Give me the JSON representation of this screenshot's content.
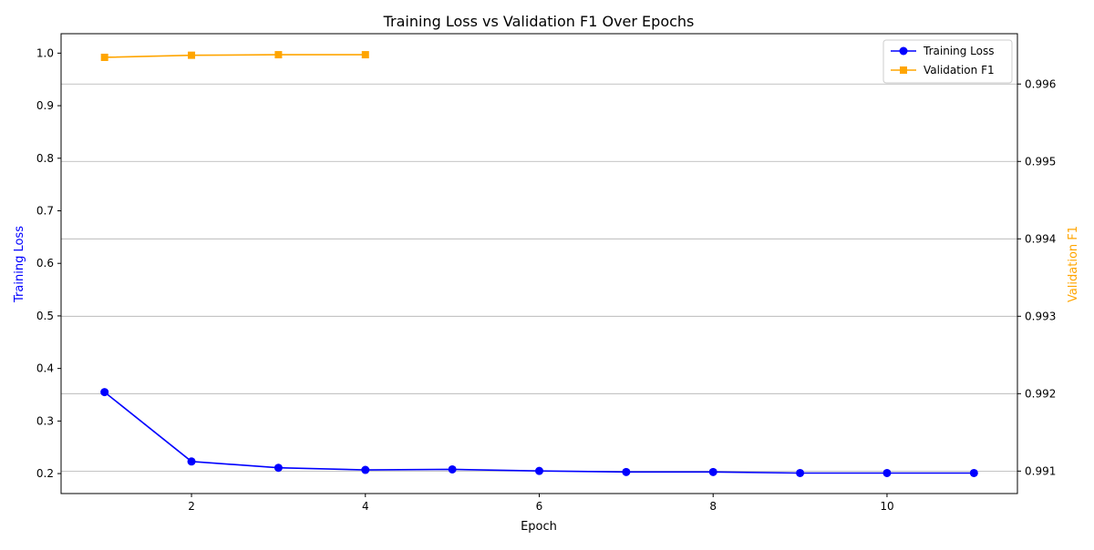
{
  "chart_data": {
    "type": "line",
    "title": "Training Loss vs Validation F1 Over Epochs",
    "xlabel": "Epoch",
    "y_left_label": "Training Loss",
    "y_right_label": "Validation F1",
    "xlim": [
      0.5,
      11.5
    ],
    "x_ticks": [
      2,
      4,
      6,
      8,
      10
    ],
    "y_left_lim": [
      0.162,
      1.037
    ],
    "y_left_ticks": [
      0.2,
      0.3,
      0.4,
      0.5,
      0.6,
      0.7,
      0.8,
      0.9,
      1.0
    ],
    "y_right_lim": [
      0.99071,
      0.99665
    ],
    "y_right_ticks": [
      0.991,
      0.992,
      0.993,
      0.994,
      0.995,
      0.996
    ],
    "grid": "horizontal lines at right-axis ticks",
    "legend_position": "top-right",
    "series": [
      {
        "name": "Training Loss",
        "axis": "left",
        "color": "#0000ff",
        "marker": "circle",
        "x": [
          1,
          2,
          3,
          4,
          5,
          6,
          7,
          8,
          9,
          10,
          11
        ],
        "values": [
          0.355,
          0.223,
          0.211,
          0.207,
          0.208,
          0.205,
          0.203,
          0.203,
          0.201,
          0.201,
          0.201
        ]
      },
      {
        "name": "Validation F1",
        "axis": "left",
        "color": "#ffa500",
        "marker": "square",
        "x": [
          1,
          2,
          3,
          4
        ],
        "values": [
          0.992,
          0.996,
          0.997,
          0.997
        ]
      }
    ]
  }
}
